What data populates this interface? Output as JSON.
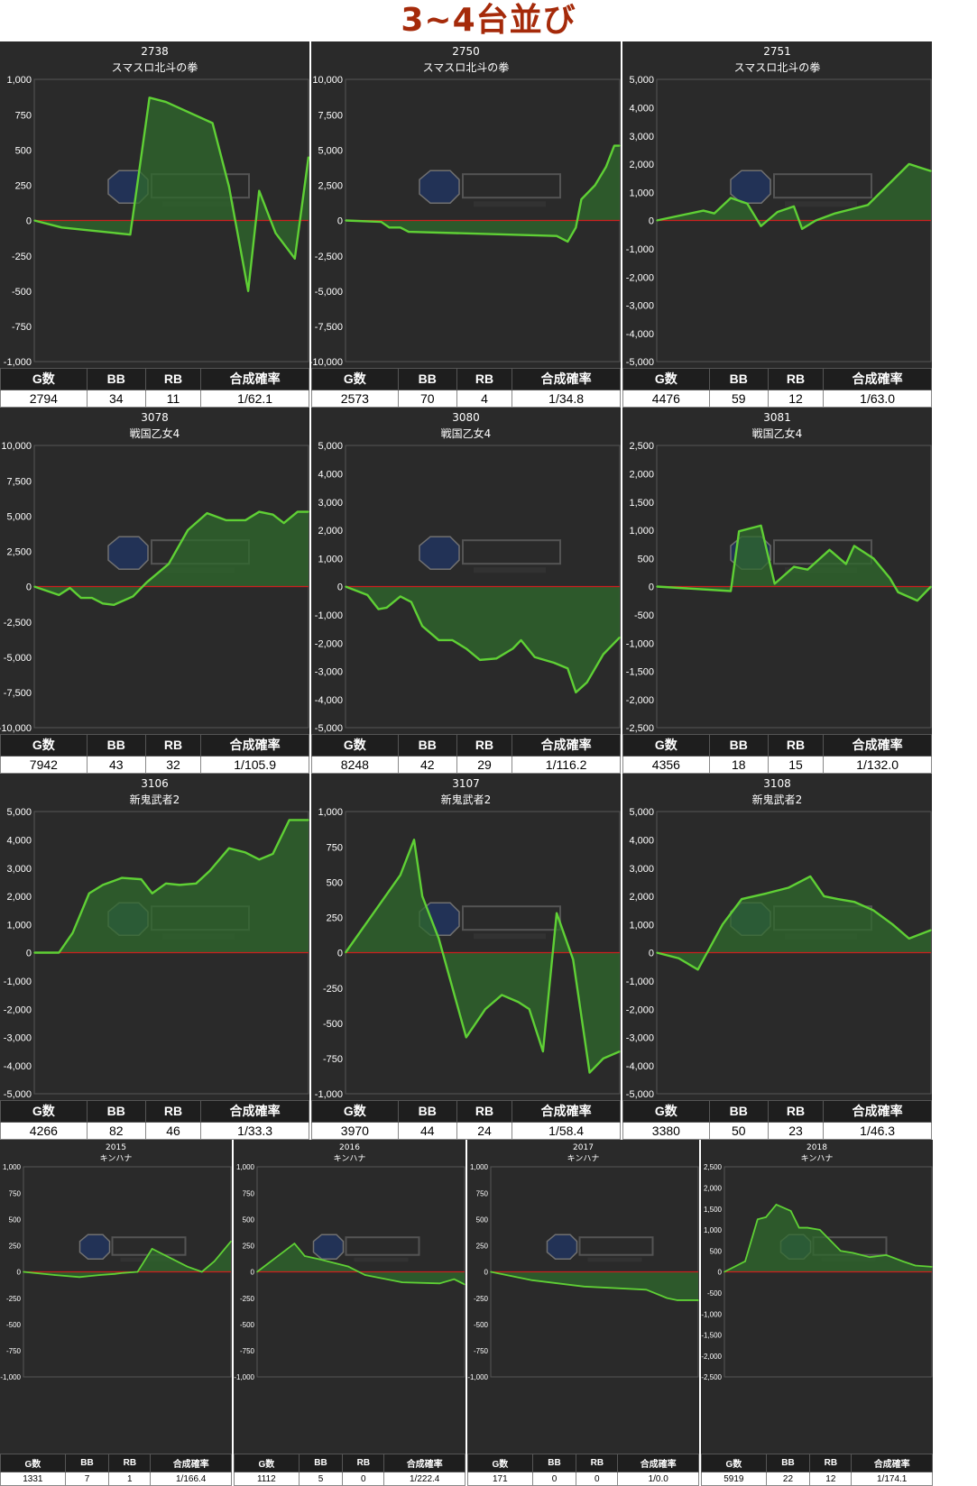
{
  "page": {
    "title": "3~4台並び",
    "stat_headers": [
      "G数",
      "BB",
      "RB",
      "合成確率"
    ],
    "colors": {
      "line": "#5fd035",
      "fill": "#2f6a2c",
      "zero_line": "#cc1f1f",
      "panel_bg": "#2a2a2a",
      "title": "#a52a0a"
    }
  },
  "chart_data": [
    {
      "type": "area",
      "machine_no": "2738",
      "model": "スマスロ北斗の拳",
      "ylim": [
        -1000,
        1000
      ],
      "yticks": [
        1000,
        750,
        500,
        250,
        0,
        -250,
        -500,
        -750,
        -1000
      ],
      "x": [
        0,
        0.1,
        0.35,
        0.42,
        0.48,
        0.65,
        0.71,
        0.78,
        0.82,
        0.88,
        0.95,
        1
      ],
      "y": [
        0,
        -50,
        -100,
        870,
        840,
        690,
        240,
        -500,
        210,
        -90,
        -270,
        450
      ],
      "stats": {
        "games": "2794",
        "bb": "34",
        "rb": "11",
        "rate": "1/62.1"
      }
    },
    {
      "type": "area",
      "machine_no": "2750",
      "model": "スマスロ北斗の拳",
      "ylim": [
        -10000,
        10000
      ],
      "yticks": [
        10000,
        7500,
        5000,
        2500,
        0,
        -2500,
        -5000,
        -7500,
        -10000
      ],
      "x": [
        0,
        0.13,
        0.16,
        0.2,
        0.23,
        0.77,
        0.81,
        0.84,
        0.86,
        0.91,
        0.95,
        0.98,
        1
      ],
      "y": [
        0,
        -100,
        -500,
        -500,
        -800,
        -1100,
        -1500,
        -500,
        1500,
        2500,
        3800,
        5300,
        5300
      ],
      "stats": {
        "games": "2573",
        "bb": "70",
        "rb": "4",
        "rate": "1/34.8"
      }
    },
    {
      "type": "area",
      "machine_no": "2751",
      "model": "スマスロ北斗の拳",
      "ylim": [
        -5000,
        5000
      ],
      "yticks": [
        5000,
        4000,
        3000,
        2000,
        1000,
        0,
        -1000,
        -2000,
        -3000,
        -4000,
        -5000
      ],
      "x": [
        0,
        0.17,
        0.21,
        0.27,
        0.33,
        0.38,
        0.44,
        0.5,
        0.53,
        0.58,
        0.65,
        0.71,
        0.77,
        0.92,
        1
      ],
      "y": [
        0,
        350,
        250,
        800,
        600,
        -200,
        300,
        500,
        -300,
        0,
        250,
        400,
        550,
        2000,
        1750
      ],
      "stats": {
        "games": "4476",
        "bb": "59",
        "rb": "12",
        "rate": "1/63.0"
      }
    },
    {
      "type": "area",
      "machine_no": "3078",
      "model": "戦国乙女4",
      "ylim": [
        -10000,
        10000
      ],
      "yticks": [
        10000,
        7500,
        5000,
        2500,
        0,
        -2500,
        -5000,
        -7500,
        -10000
      ],
      "x": [
        0,
        0.09,
        0.13,
        0.17,
        0.21,
        0.25,
        0.29,
        0.36,
        0.41,
        0.49,
        0.56,
        0.63,
        0.7,
        0.77,
        0.82,
        0.87,
        0.91,
        0.96,
        1
      ],
      "y": [
        0,
        -600,
        -100,
        -800,
        -800,
        -1200,
        -1300,
        -700,
        300,
        1600,
        4000,
        5200,
        4700,
        4700,
        5300,
        5100,
        4500,
        5300,
        5300
      ],
      "stats": {
        "games": "7942",
        "bb": "43",
        "rb": "32",
        "rate": "1/105.9"
      }
    },
    {
      "type": "area",
      "machine_no": "3080",
      "model": "戦国乙女4",
      "ylim": [
        -5000,
        5000
      ],
      "yticks": [
        5000,
        4000,
        3000,
        2000,
        1000,
        0,
        -1000,
        -2000,
        -3000,
        -4000,
        -5000
      ],
      "x": [
        0,
        0.08,
        0.12,
        0.15,
        0.2,
        0.24,
        0.28,
        0.34,
        0.39,
        0.44,
        0.49,
        0.55,
        0.61,
        0.64,
        0.69,
        0.76,
        0.81,
        0.84,
        0.88,
        0.94,
        1
      ],
      "y": [
        0,
        -300,
        -800,
        -750,
        -350,
        -550,
        -1400,
        -1900,
        -1900,
        -2200,
        -2600,
        -2550,
        -2200,
        -1900,
        -2500,
        -2700,
        -2900,
        -3750,
        -3400,
        -2400,
        -1800
      ],
      "stats": {
        "games": "8248",
        "bb": "42",
        "rb": "29",
        "rate": "1/116.2"
      }
    },
    {
      "type": "area",
      "machine_no": "3081",
      "model": "戦国乙女4",
      "ylim": [
        -2500,
        2500
      ],
      "yticks": [
        2500,
        2000,
        1500,
        1000,
        500,
        0,
        -500,
        -1000,
        -1500,
        -2000,
        -2500
      ],
      "x": [
        0,
        0.27,
        0.3,
        0.38,
        0.43,
        0.5,
        0.55,
        0.63,
        0.69,
        0.72,
        0.79,
        0.85,
        0.88,
        0.95,
        1
      ],
      "y": [
        0,
        -80,
        980,
        1080,
        50,
        350,
        300,
        650,
        400,
        720,
        500,
        150,
        -100,
        -250,
        0
      ],
      "stats": {
        "games": "4356",
        "bb": "18",
        "rb": "15",
        "rate": "1/132.0"
      }
    },
    {
      "type": "area",
      "machine_no": "3106",
      "model": "新鬼武者2",
      "ylim": [
        -5000,
        5000
      ],
      "yticks": [
        5000,
        4000,
        3000,
        2000,
        1000,
        0,
        -1000,
        -2000,
        -3000,
        -4000,
        -5000
      ],
      "x": [
        0,
        0.09,
        0.14,
        0.2,
        0.25,
        0.32,
        0.39,
        0.43,
        0.48,
        0.53,
        0.59,
        0.64,
        0.71,
        0.77,
        0.82,
        0.87,
        0.93,
        0.98,
        1
      ],
      "y": [
        0,
        0,
        700,
        2100,
        2400,
        2650,
        2600,
        2100,
        2450,
        2400,
        2450,
        2900,
        3700,
        3550,
        3300,
        3500,
        4700,
        4700,
        4700
      ],
      "stats": {
        "games": "4266",
        "bb": "82",
        "rb": "46",
        "rate": "1/33.3"
      }
    },
    {
      "type": "area",
      "machine_no": "3107",
      "model": "新鬼武者2",
      "ylim": [
        -1000,
        1000
      ],
      "yticks": [
        1000,
        750,
        500,
        250,
        0,
        -250,
        -500,
        -750,
        -1000
      ],
      "x": [
        0,
        0.2,
        0.25,
        0.28,
        0.34,
        0.39,
        0.44,
        0.51,
        0.57,
        0.63,
        0.67,
        0.72,
        0.77,
        0.83,
        0.89,
        0.94,
        1
      ],
      "y": [
        0,
        550,
        800,
        400,
        100,
        -250,
        -600,
        -400,
        -300,
        -350,
        -400,
        -700,
        280,
        -50,
        -850,
        -750,
        -700
      ],
      "stats": {
        "games": "3970",
        "bb": "44",
        "rb": "24",
        "rate": "1/58.4"
      }
    },
    {
      "type": "area",
      "machine_no": "3108",
      "model": "新鬼武者2",
      "ylim": [
        -5000,
        5000
      ],
      "yticks": [
        5000,
        4000,
        3000,
        2000,
        1000,
        0,
        -1000,
        -2000,
        -3000,
        -4000,
        -5000
      ],
      "x": [
        0,
        0.08,
        0.15,
        0.24,
        0.31,
        0.4,
        0.48,
        0.56,
        0.61,
        0.66,
        0.72,
        0.79,
        0.86,
        0.92,
        1
      ],
      "y": [
        0,
        -200,
        -600,
        1000,
        1900,
        2100,
        2300,
        2700,
        2000,
        1900,
        1800,
        1500,
        1000,
        500,
        800
      ],
      "stats": {
        "games": "3380",
        "bb": "50",
        "rb": "23",
        "rate": "1/46.3"
      }
    },
    {
      "type": "area",
      "machine_no": "2015",
      "model": "キンハナ",
      "ylim": [
        -1000,
        1000
      ],
      "yticks": [
        1000,
        750,
        500,
        250,
        0,
        -250,
        -500,
        -750,
        -1000
      ],
      "x": [
        0,
        0.15,
        0.27,
        0.32,
        0.37,
        0.44,
        0.48,
        0.55,
        0.62,
        0.69,
        0.79,
        0.86,
        0.92,
        1
      ],
      "y": [
        0,
        -30,
        -50,
        -40,
        -30,
        -20,
        -10,
        0,
        220,
        150,
        50,
        0,
        100,
        290
      ],
      "stats": {
        "games": "1331",
        "bb": "7",
        "rb": "1",
        "rate": "1/166.4"
      }
    },
    {
      "type": "area",
      "machine_no": "2016",
      "model": "キンハナ",
      "ylim": [
        -1000,
        1000
      ],
      "yticks": [
        1000,
        750,
        500,
        250,
        0,
        -250,
        -500,
        -750,
        -1000
      ],
      "x": [
        0,
        0.18,
        0.23,
        0.3,
        0.44,
        0.52,
        0.7,
        0.88,
        0.95,
        1
      ],
      "y": [
        0,
        270,
        150,
        120,
        50,
        -30,
        -100,
        -110,
        -70,
        -120
      ],
      "stats": {
        "games": "1112",
        "bb": "5",
        "rb": "0",
        "rate": "1/222.4"
      }
    },
    {
      "type": "area",
      "machine_no": "2017",
      "model": "キンハナ",
      "ylim": [
        -1000,
        1000
      ],
      "yticks": [
        1000,
        750,
        500,
        250,
        0,
        -250,
        -500,
        -750,
        -1000
      ],
      "x": [
        0,
        0.2,
        0.45,
        0.75,
        0.85,
        0.9,
        1
      ],
      "y": [
        0,
        -80,
        -140,
        -170,
        -250,
        -270,
        -270
      ],
      "stats": {
        "games": "171",
        "bb": "0",
        "rb": "0",
        "rate": "1/0.0"
      }
    },
    {
      "type": "area",
      "machine_no": "2018",
      "model": "キンハナ",
      "ylim": [
        -2500,
        2500
      ],
      "yticks": [
        2500,
        2000,
        1500,
        1000,
        500,
        0,
        -500,
        -1000,
        -1500,
        -2000,
        -2500
      ],
      "x": [
        0,
        0.1,
        0.16,
        0.2,
        0.25,
        0.32,
        0.36,
        0.4,
        0.46,
        0.52,
        0.56,
        0.62,
        0.7,
        0.78,
        0.86,
        0.92,
        1
      ],
      "y": [
        0,
        250,
        1250,
        1300,
        1600,
        1450,
        1050,
        1050,
        1000,
        700,
        500,
        450,
        350,
        400,
        250,
        150,
        120
      ],
      "stats": {
        "games": "5919",
        "bb": "22",
        "rb": "12",
        "rate": "1/174.1"
      }
    }
  ]
}
